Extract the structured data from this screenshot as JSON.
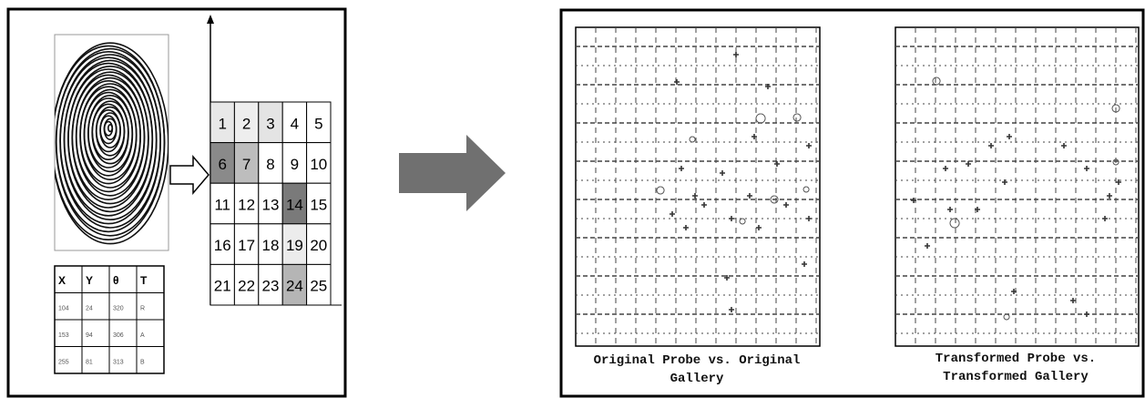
{
  "table": {
    "header": [
      "X",
      "Y",
      "θ",
      "T"
    ],
    "rows": [
      [
        "104",
        "24",
        "320",
        "R"
      ],
      [
        "153",
        "94",
        "306",
        "A"
      ],
      [
        "255",
        "81",
        "313",
        "B"
      ]
    ]
  },
  "grid": {
    "cells": [
      "1",
      "2",
      "3",
      "4",
      "5",
      "6",
      "7",
      "8",
      "9",
      "10",
      "11",
      "12",
      "13",
      "14",
      "15",
      "16",
      "17",
      "18",
      "19",
      "20",
      "21",
      "22",
      "23",
      "24",
      "25"
    ]
  },
  "plots": [
    {
      "caption": "Original Probe vs. Original Gallery"
    },
    {
      "caption": "Transformed Probe vs. Transformed Gallery"
    }
  ]
}
